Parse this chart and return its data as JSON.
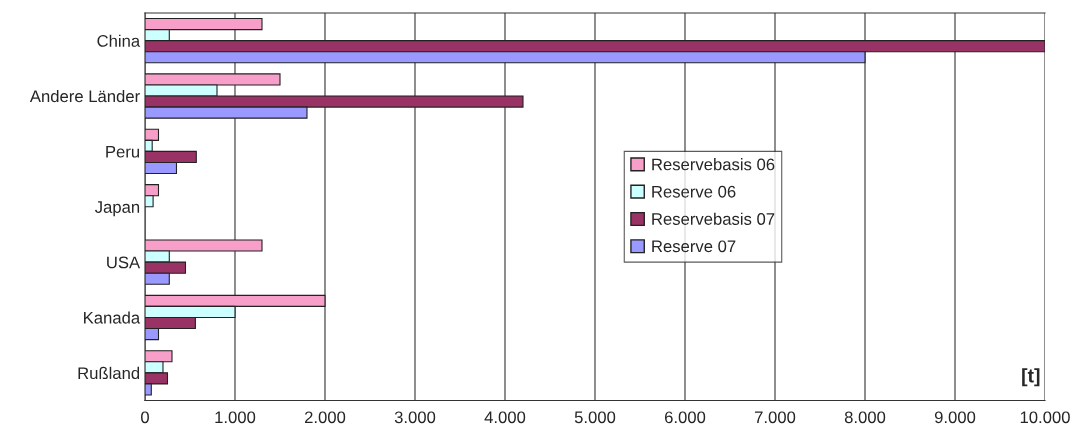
{
  "chart_data": {
    "type": "bar",
    "orientation": "horizontal",
    "categories": [
      "China",
      "Andere Länder",
      "Peru",
      "Japan",
      "USA",
      "Kanada",
      "Rußland"
    ],
    "series": [
      {
        "name": "Reservebasis 06",
        "color": "#f79fc8",
        "values": [
          1300,
          1500,
          150,
          150,
          1300,
          2000,
          300
        ]
      },
      {
        "name": "Reserve 06",
        "color": "#ccffff",
        "values": [
          270,
          800,
          80,
          90,
          270,
          1000,
          200
        ]
      },
      {
        "name": "Reservebasis 07",
        "color": "#993366",
        "values": [
          10000,
          4200,
          570,
          null,
          450,
          560,
          250
        ]
      },
      {
        "name": "Reserve 07",
        "color": "#9999ff",
        "values": [
          8000,
          1800,
          350,
          null,
          270,
          150,
          70
        ]
      }
    ],
    "xlabel": "[t]",
    "xlim": [
      0,
      10000
    ],
    "xticks": [
      0,
      {
        "value": 1000,
        "label": "1.000"
      },
      {
        "value": 2000,
        "label": "2.000"
      },
      {
        "value": 3000,
        "label": "3.000"
      },
      {
        "value": 4000,
        "label": "4.000"
      },
      {
        "value": 5000,
        "label": "5.000"
      },
      {
        "value": 6000,
        "label": "6.000"
      },
      {
        "value": 7000,
        "label": "7.000"
      },
      {
        "value": 8000,
        "label": "8.000"
      },
      {
        "value": 9000,
        "label": "9.000"
      },
      {
        "value": 10000,
        "label": "10.000"
      }
    ],
    "grid": "x",
    "legend": "center"
  }
}
